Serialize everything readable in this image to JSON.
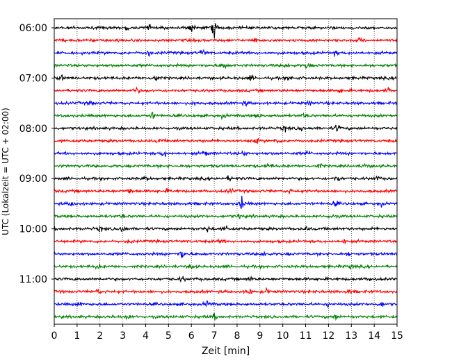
{
  "chart_data": {
    "type": "line",
    "title": "",
    "xlabel": "Zeit  [min]",
    "ylabel": "UTC (Lokalzeit = UTC + 02:00)",
    "xlim": [
      0,
      15
    ],
    "x_ticks": [
      0,
      1,
      2,
      3,
      4,
      5,
      6,
      7,
      8,
      9,
      10,
      11,
      12,
      13,
      14,
      15
    ],
    "y_tick_labels": [
      "06:00",
      "07:00",
      "08:00",
      "09:00",
      "10:00",
      "11:00"
    ],
    "grid": true,
    "trace_interval_min": 15,
    "trace_colors": [
      "#000000",
      "#ff0000",
      "#0000ff",
      "#008000"
    ],
    "traces": [
      {
        "start": "06:00",
        "events": [
          [
            4.1,
            0.5
          ],
          [
            6.0,
            0.7
          ],
          [
            7.0,
            1.4
          ],
          [
            3.2,
            0.3
          ]
        ]
      },
      {
        "start": "06:15",
        "events": [
          [
            2.8,
            0.3
          ],
          [
            8.8,
            0.35
          ],
          [
            13.4,
            0.3
          ]
        ]
      },
      {
        "start": "06:30",
        "events": [
          [
            4.1,
            0.5
          ],
          [
            6.5,
            0.55
          ],
          [
            12.3,
            0.3
          ]
        ]
      },
      {
        "start": "06:45",
        "events": [
          [
            7.4,
            0.6
          ],
          [
            10.2,
            0.35
          ],
          [
            11.1,
            0.55
          ]
        ]
      },
      {
        "start": "07:00",
        "events": [
          [
            0.3,
            0.4
          ],
          [
            4.4,
            0.9
          ],
          [
            8.6,
            0.4
          ],
          [
            10.3,
            0.3
          ]
        ]
      },
      {
        "start": "07:15",
        "events": [
          [
            3.6,
            0.5
          ],
          [
            12.5,
            0.3
          ],
          [
            14.6,
            0.35
          ]
        ]
      },
      {
        "start": "07:30",
        "events": [
          [
            1.6,
            0.3
          ],
          [
            6.2,
            0.35
          ],
          [
            8.4,
            0.4
          ],
          [
            11.2,
            0.3
          ]
        ]
      },
      {
        "start": "07:45",
        "events": [
          [
            4.3,
            0.5
          ],
          [
            7.4,
            0.35
          ],
          [
            8.9,
            0.4
          ],
          [
            10.9,
            0.3
          ]
        ]
      },
      {
        "start": "08:00",
        "events": [
          [
            10.1,
            0.4
          ],
          [
            10.8,
            0.35
          ],
          [
            12.4,
            0.6
          ]
        ]
      },
      {
        "start": "08:15",
        "events": [
          [
            4.6,
            0.3
          ],
          [
            8.8,
            0.55
          ],
          [
            9.7,
            0.4
          ]
        ]
      },
      {
        "start": "08:30",
        "events": [
          [
            4.8,
            0.5
          ],
          [
            6.6,
            0.6
          ],
          [
            8.3,
            0.35
          ],
          [
            11.1,
            0.3
          ]
        ]
      },
      {
        "start": "08:45",
        "events": [
          [
            9.4,
            0.4
          ],
          [
            11.6,
            0.35
          ],
          [
            13.6,
            0.3
          ]
        ]
      },
      {
        "start": "09:00",
        "events": [
          [
            4.0,
            0.3
          ],
          [
            7.7,
            0.45
          ],
          [
            12.4,
            0.55
          ],
          [
            14.1,
            0.35
          ]
        ]
      },
      {
        "start": "09:15",
        "events": [
          [
            3.3,
            0.5
          ],
          [
            5.0,
            0.3
          ],
          [
            7.7,
            0.35
          ],
          [
            10.3,
            0.3
          ]
        ]
      },
      {
        "start": "09:30",
        "events": [
          [
            0.8,
            0.4
          ],
          [
            8.2,
            1.1
          ],
          [
            12.3,
            0.4
          ],
          [
            14.3,
            0.35
          ]
        ]
      },
      {
        "start": "09:45",
        "events": [
          [
            3.0,
            0.3
          ],
          [
            8.1,
            0.35
          ],
          [
            12.1,
            0.3
          ]
        ]
      },
      {
        "start": "10:00",
        "events": [
          [
            2.0,
            0.35
          ],
          [
            3.0,
            0.6
          ],
          [
            6.7,
            0.45
          ],
          [
            7.5,
            0.4
          ],
          [
            11.0,
            0.3
          ]
        ]
      },
      {
        "start": "10:15",
        "events": [
          [
            3.3,
            0.3
          ],
          [
            7.3,
            0.35
          ],
          [
            12.7,
            0.4
          ]
        ]
      },
      {
        "start": "10:30",
        "events": [
          [
            5.6,
            0.8
          ],
          [
            9.2,
            0.5
          ],
          [
            12.9,
            0.3
          ]
        ]
      },
      {
        "start": "10:45",
        "events": [
          [
            1.9,
            0.3
          ],
          [
            6.0,
            0.3
          ],
          [
            13.0,
            0.3
          ]
        ]
      },
      {
        "start": "11:00",
        "events": [
          [
            5.6,
            0.35
          ],
          [
            8.6,
            0.4
          ],
          [
            13.8,
            0.3
          ]
        ]
      },
      {
        "start": "11:15",
        "events": [
          [
            1.9,
            0.35
          ],
          [
            8.5,
            0.55
          ],
          [
            9.3,
            0.4
          ],
          [
            12.9,
            0.3
          ]
        ]
      },
      {
        "start": "11:30",
        "events": [
          [
            1.1,
            0.3
          ],
          [
            6.7,
            0.5
          ],
          [
            14.3,
            0.5
          ],
          [
            12.0,
            0.3
          ]
        ]
      },
      {
        "start": "11:45",
        "events": [
          [
            3.2,
            0.35
          ],
          [
            7.0,
            0.4
          ],
          [
            12.3,
            0.4
          ]
        ]
      }
    ]
  }
}
